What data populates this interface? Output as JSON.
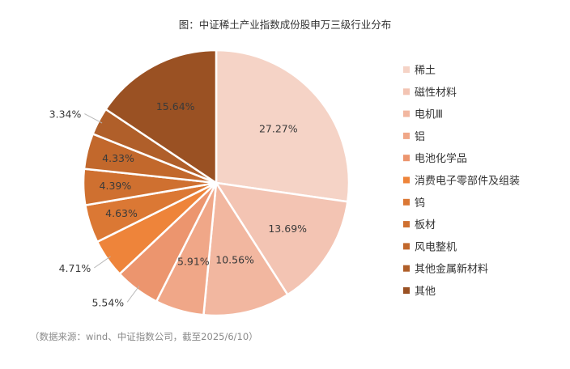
{
  "chart_data": {
    "type": "pie",
    "title": "图：中证稀土产业指数成份股申万三级行业分布",
    "legend_position": "right",
    "slices": [
      {
        "label": "稀土",
        "value": 27.27,
        "value_label": "27.27%",
        "color": "#F5D3C6"
      },
      {
        "label": "磁性材料",
        "value": 13.69,
        "value_label": "13.69%",
        "color": "#F3C4B3"
      },
      {
        "label": "电机Ⅲ",
        "value": 10.56,
        "value_label": "10.56%",
        "color": "#F2B7A0"
      },
      {
        "label": "铝",
        "value": 5.91,
        "value_label": "5.91%",
        "color": "#F0A788"
      },
      {
        "label": "电池化学品",
        "value": 5.54,
        "value_label": "5.54%",
        "color": "#EC956E"
      },
      {
        "label": "消费电子零部件及组装",
        "value": 4.71,
        "value_label": "4.71%",
        "color": "#EE843A"
      },
      {
        "label": "钨",
        "value": 4.63,
        "value_label": "4.63%",
        "color": "#DB7834"
      },
      {
        "label": "板材",
        "value": 4.39,
        "value_label": "4.39%",
        "color": "#CF7030"
      },
      {
        "label": "风电整机",
        "value": 4.33,
        "value_label": "4.33%",
        "color": "#C2682C"
      },
      {
        "label": "其他金属新材料",
        "value": 3.34,
        "value_label": "3.34%",
        "color": "#B05F2A"
      },
      {
        "label": "其他",
        "value": 15.64,
        "value_label": "15.64%",
        "color": "#9A5123"
      }
    ]
  },
  "source_note": "（数据来源：wind、中证指数公司，截至2025/6/10）"
}
